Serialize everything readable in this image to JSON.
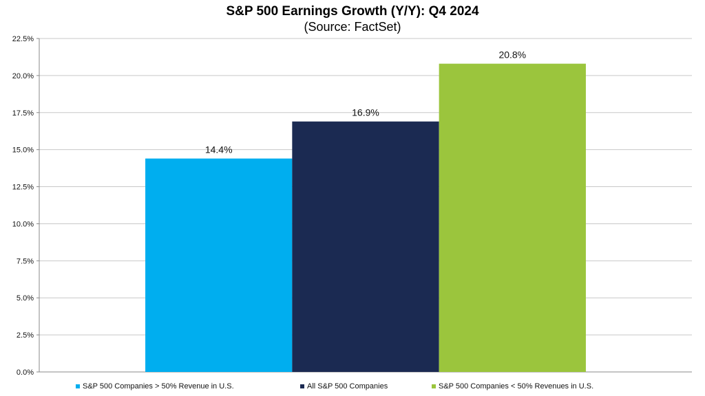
{
  "chart_data": {
    "type": "bar",
    "title": "S&P 500 Earnings Growth (Y/Y): Q4 2024",
    "subtitle": "(Source: FactSet)",
    "categories": [
      "S&P 500 Companies > 50% Revenue in U.S.",
      "All S&P 500 Companies",
      "S&P 500 Companies < 50% Revenues in U.S."
    ],
    "values": [
      14.4,
      16.9,
      20.8
    ],
    "data_labels": [
      "14.4%",
      "16.9%",
      "20.8%"
    ],
    "colors": [
      "#00AEEF",
      "#1B2A52",
      "#9BC53D"
    ],
    "ylim": [
      0,
      22.5
    ],
    "yticks": [
      0,
      2.5,
      5,
      7.5,
      10,
      12.5,
      15,
      17.5,
      20,
      22.5
    ],
    "ytick_labels": [
      "0.0%",
      "2.5%",
      "5.0%",
      "7.5%",
      "10.0%",
      "12.5%",
      "15.0%",
      "17.5%",
      "20.0%",
      "22.5%"
    ],
    "grid": true,
    "legend_position": "bottom"
  }
}
